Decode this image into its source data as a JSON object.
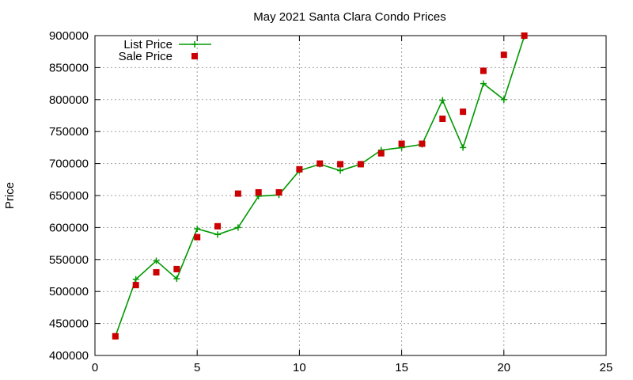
{
  "chart_data": {
    "type": "line",
    "title": "May 2021 Santa Clara Condo Prices",
    "xlabel": "",
    "ylabel": "Price",
    "xlim": [
      0,
      25
    ],
    "ylim": [
      400000,
      900000
    ],
    "xticks": [
      0,
      5,
      10,
      15,
      20,
      25
    ],
    "yticks": [
      400000,
      450000,
      500000,
      550000,
      600000,
      650000,
      700000,
      750000,
      800000,
      850000,
      900000
    ],
    "grid": true,
    "legend_position": "top-left",
    "series": [
      {
        "name": "List Price",
        "style": "line-with-plus-markers",
        "color": "#009900",
        "x": [
          1,
          2,
          3,
          4,
          5,
          6,
          7,
          8,
          9,
          10,
          11,
          12,
          13,
          14,
          15,
          16,
          17,
          18,
          19,
          20,
          21
        ],
        "y": [
          430000,
          519000,
          548000,
          520000,
          598000,
          589000,
          600000,
          649000,
          651000,
          689000,
          699000,
          689000,
          699000,
          721000,
          725000,
          730000,
          799000,
          725000,
          825000,
          800000,
          899000
        ]
      },
      {
        "name": "Sale Price",
        "style": "square-markers",
        "color": "#cc0000",
        "x": [
          1,
          2,
          3,
          4,
          5,
          6,
          7,
          8,
          9,
          10,
          11,
          12,
          13,
          14,
          15,
          16,
          17,
          18,
          19,
          20,
          21
        ],
        "y": [
          430000,
          510000,
          530000,
          535000,
          585000,
          602000,
          653000,
          655000,
          655000,
          691000,
          700000,
          699000,
          699000,
          716000,
          731000,
          731000,
          770000,
          781000,
          845000,
          870000,
          900000
        ]
      }
    ]
  }
}
